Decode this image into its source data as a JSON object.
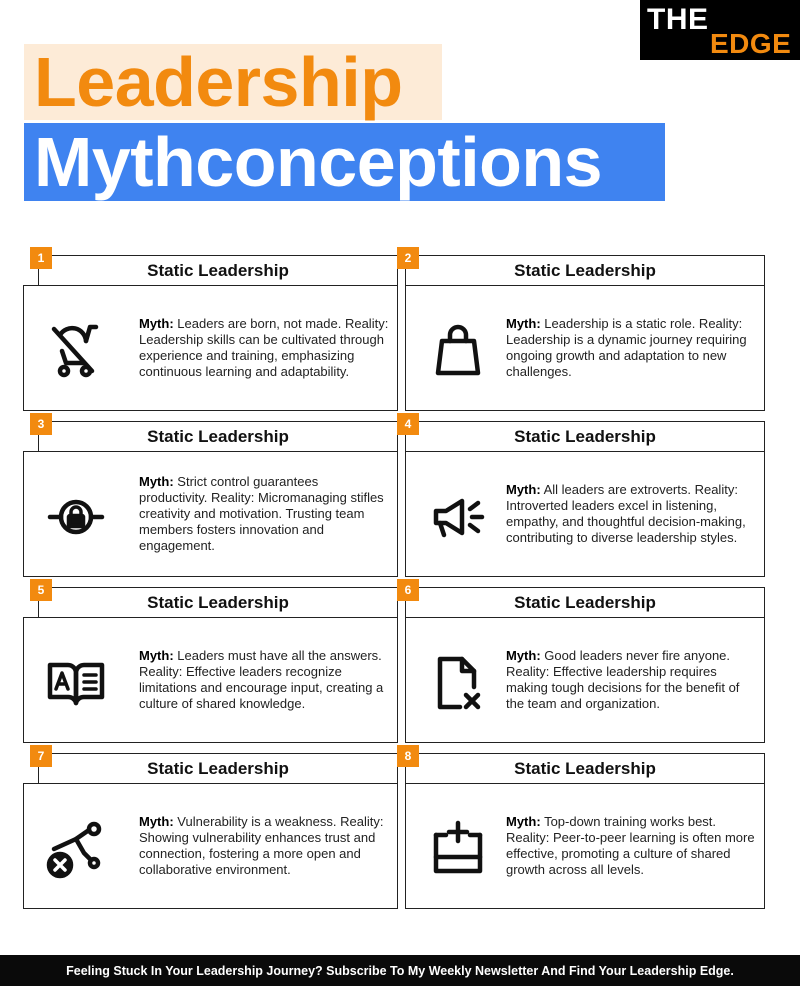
{
  "logo": {
    "line1": "THE",
    "line2": "EDGE"
  },
  "title": {
    "line1": "Leadership",
    "line2": "Mythconceptions"
  },
  "cards": [
    {
      "number": "1",
      "heading": "Static Leadership",
      "myth_label": "Myth:",
      "text": "Leaders are born, not made. Reality: Leadership skills can be cultivated through experience and training, emphasizing continuous learning and adaptability.",
      "icon": "stroller-off-icon"
    },
    {
      "number": "2",
      "heading": "Static Leadership",
      "myth_label": "Myth:",
      "text": "Leadership is a static role. Reality: Leadership is a dynamic journey requiring ongoing growth and adaptation to new challenges.",
      "icon": "weight-icon"
    },
    {
      "number": "3",
      "heading": "Static Leadership",
      "myth_label": "Myth:",
      "text": "Strict control guarantees productivity. Reality: Micromanaging stifles creativity and motivation. Trusting team members fosters innovation and engagement.",
      "icon": "lock-circle-icon"
    },
    {
      "number": "4",
      "heading": "Static Leadership",
      "myth_label": "Myth:",
      "text": "All leaders are extroverts. Reality: Introverted leaders excel in listening, empathy, and thoughtful decision-making, contributing to diverse leadership styles.",
      "icon": "megaphone-icon"
    },
    {
      "number": "5",
      "heading": "Static Leadership",
      "myth_label": "Myth:",
      "text": "Leaders must have all the answers. Reality: Effective leaders recognize limitations and encourage input, creating a culture of shared knowledge.",
      "icon": "open-book-icon"
    },
    {
      "number": "6",
      "heading": "Static Leadership",
      "myth_label": "Myth:",
      "text": "Good leaders never fire anyone. Reality: Effective leadership requires making tough decisions for the benefit of the team and organization.",
      "icon": "file-remove-icon"
    },
    {
      "number": "7",
      "heading": "Static Leadership",
      "myth_label": "Myth:",
      "text": "Vulnerability is a weakness. Reality: Showing vulnerability enhances trust and connection, fostering a more open and collaborative environment.",
      "icon": "route-cancel-icon"
    },
    {
      "number": "8",
      "heading": "Static Leadership",
      "myth_label": "Myth:",
      "text": "Top-down training works best. Reality: Peer-to-peer learning is often more effective, promoting a culture of shared growth across all levels.",
      "icon": "calendar-plus-icon"
    }
  ],
  "footer": {
    "text": "Feeling Stuck In Your Leadership Journey? Subscribe To My Weekly Newsletter And Find Your Leadership Edge."
  },
  "colors": {
    "orange": "#f28a0f",
    "blue": "#3f83f0",
    "peach": "#fdebd7",
    "black": "#0a0a0a"
  }
}
